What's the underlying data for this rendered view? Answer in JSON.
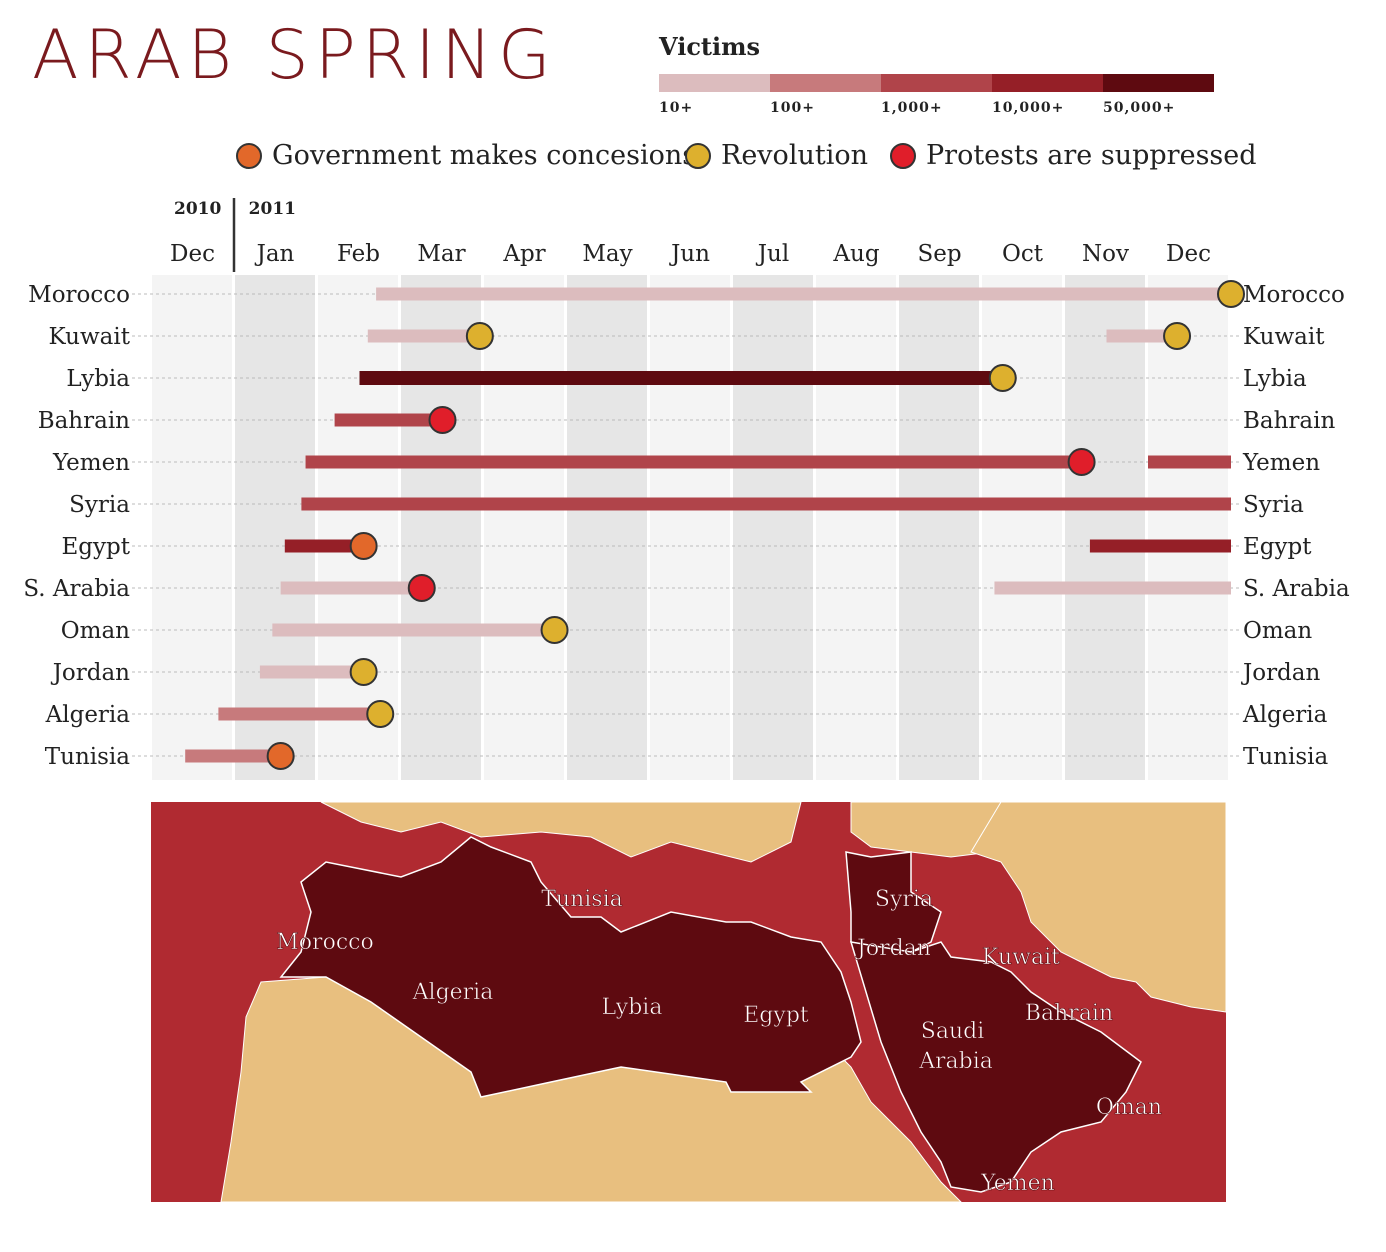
{
  "title": "ARAB SPRING",
  "victims": {
    "title": "Victims",
    "levels": [
      {
        "label": "10+",
        "color": "#dcbcbe"
      },
      {
        "label": "100+",
        "color": "#c77a7c"
      },
      {
        "label": "1,000+",
        "color": "#b0444a"
      },
      {
        "label": "10,000+",
        "color": "#951f27"
      },
      {
        "label": "50,000+",
        "color": "#5e0a10"
      }
    ]
  },
  "legend": [
    {
      "label": "Government makes concesions",
      "color": "#e2682a"
    },
    {
      "label": "Revolution",
      "color": "#ddb02e"
    },
    {
      "label": "Protests are suppressed",
      "color": "#e01e2a"
    }
  ],
  "chart_data": {
    "type": "timeline",
    "years": [
      "2010",
      "2011"
    ],
    "months": [
      "Dec",
      "Jan",
      "Feb",
      "Mar",
      "Apr",
      "May",
      "Jun",
      "Jul",
      "Aug",
      "Sep",
      "Oct",
      "Nov",
      "Dec"
    ],
    "rows": [
      {
        "country": "Morocco",
        "bars": [
          {
            "start": 2.7,
            "end": 13.0,
            "level": 0
          }
        ],
        "events": [
          {
            "t": 13.0,
            "type": 1
          }
        ]
      },
      {
        "country": "Kuwait",
        "bars": [
          {
            "start": 2.6,
            "end": 3.95,
            "level": 0
          },
          {
            "start": 11.5,
            "end": 12.3,
            "level": 0
          }
        ],
        "events": [
          {
            "t": 3.95,
            "type": 1
          },
          {
            "t": 12.35,
            "type": 1
          }
        ]
      },
      {
        "country": "Lybia",
        "bars": [
          {
            "start": 2.5,
            "end": 10.25,
            "level": 4
          }
        ],
        "events": [
          {
            "t": 10.25,
            "type": 1
          }
        ]
      },
      {
        "country": "Bahrain",
        "bars": [
          {
            "start": 2.2,
            "end": 3.5,
            "level": 2
          }
        ],
        "events": [
          {
            "t": 3.5,
            "type": 2
          }
        ]
      },
      {
        "country": "Yemen",
        "bars": [
          {
            "start": 1.85,
            "end": 11.2,
            "level": 2
          },
          {
            "start": 12.0,
            "end": 13.0,
            "level": 2
          }
        ],
        "events": [
          {
            "t": 11.2,
            "type": 2
          }
        ]
      },
      {
        "country": "Syria",
        "bars": [
          {
            "start": 1.8,
            "end": 13.0,
            "level": 2
          }
        ],
        "events": []
      },
      {
        "country": "Egypt",
        "bars": [
          {
            "start": 1.6,
            "end": 2.55,
            "level": 3
          },
          {
            "start": 11.3,
            "end": 13.0,
            "level": 3
          }
        ],
        "events": [
          {
            "t": 2.55,
            "type": 0
          }
        ]
      },
      {
        "country": "S. Arabia",
        "bars": [
          {
            "start": 1.55,
            "end": 3.25,
            "level": 0
          },
          {
            "start": 10.15,
            "end": 13.0,
            "level": 0
          }
        ],
        "events": [
          {
            "t": 3.25,
            "type": 2
          }
        ]
      },
      {
        "country": "Oman",
        "bars": [
          {
            "start": 1.45,
            "end": 4.85,
            "level": 0
          }
        ],
        "events": [
          {
            "t": 4.85,
            "type": 1
          }
        ]
      },
      {
        "country": "Jordan",
        "bars": [
          {
            "start": 1.3,
            "end": 2.55,
            "level": 0
          }
        ],
        "events": [
          {
            "t": 2.55,
            "type": 1
          }
        ]
      },
      {
        "country": "Algeria",
        "bars": [
          {
            "start": 0.8,
            "end": 2.75,
            "level": 1
          }
        ],
        "events": [
          {
            "t": 2.75,
            "type": 1
          }
        ]
      },
      {
        "country": "Tunisia",
        "bars": [
          {
            "start": 0.4,
            "end": 1.55,
            "level": 1
          }
        ],
        "events": [
          {
            "t": 1.55,
            "type": 0
          }
        ]
      }
    ]
  },
  "map": {
    "colors": {
      "sea": "#b02a31",
      "land": "#e8bf7f",
      "affected": "#5e0a10"
    },
    "labels": [
      "Morocco",
      "Algeria",
      "Tunisia",
      "Lybia",
      "Egypt",
      "Syria",
      "Jordan",
      "Kuwait",
      "Bahrain",
      "Saudi Arabia",
      "Oman",
      "Yemen"
    ]
  }
}
